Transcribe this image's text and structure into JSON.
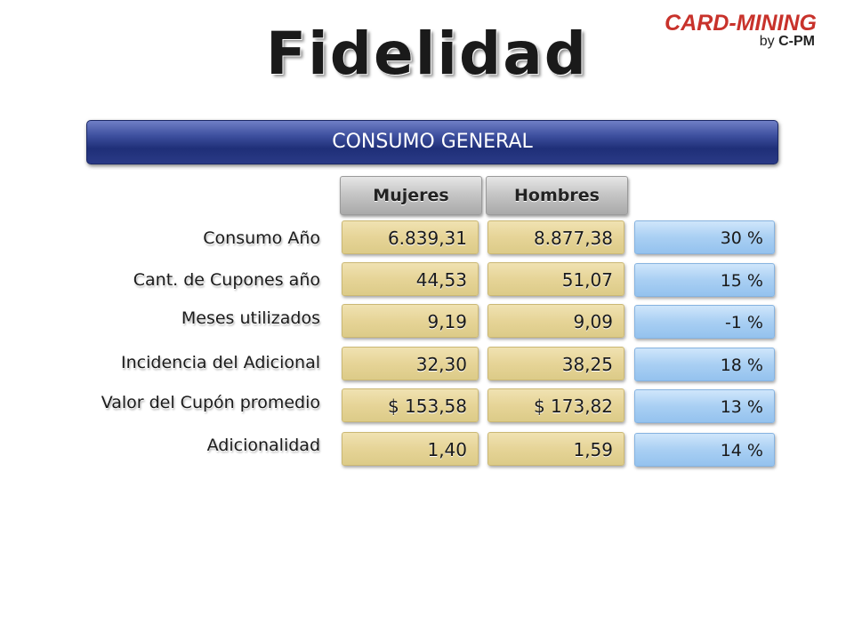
{
  "title": "Fidelidad",
  "logo": {
    "main": "CARD-MINING",
    "sub_prefix": "by ",
    "sub_brand": "C-PM"
  },
  "banner": "CONSUMO GENERAL",
  "columns": {
    "women": "Mujeres",
    "men": "Hombres"
  },
  "rows": [
    {
      "label": "Consumo Año",
      "women": "6.839,31",
      "men": "8.877,38",
      "change": "30 %"
    },
    {
      "label": "Cant. de Cupones año",
      "women": "44,53",
      "men": "51,07",
      "change": "15 %"
    },
    {
      "label": "Meses utilizados",
      "women": "9,19",
      "men": "9,09",
      "change": "-1 %"
    },
    {
      "label": "Incidencia del Adicional",
      "women": "32,30",
      "men": "38,25",
      "change": "18 %"
    },
    {
      "label": "Valor del Cupón promedio",
      "women": "$ 153,58",
      "men": "$ 173,82",
      "change": "13 %"
    },
    {
      "label": "Adicionalidad",
      "women": "1,40",
      "men": "1,59",
      "change": "14 %"
    }
  ],
  "colors": {
    "logo_red": "#c8322b",
    "banner_blue": "#2a3a86",
    "value_cell": "#e6d497",
    "change_cell": "#a9cff3",
    "header_gray": "#c6c6c6"
  }
}
